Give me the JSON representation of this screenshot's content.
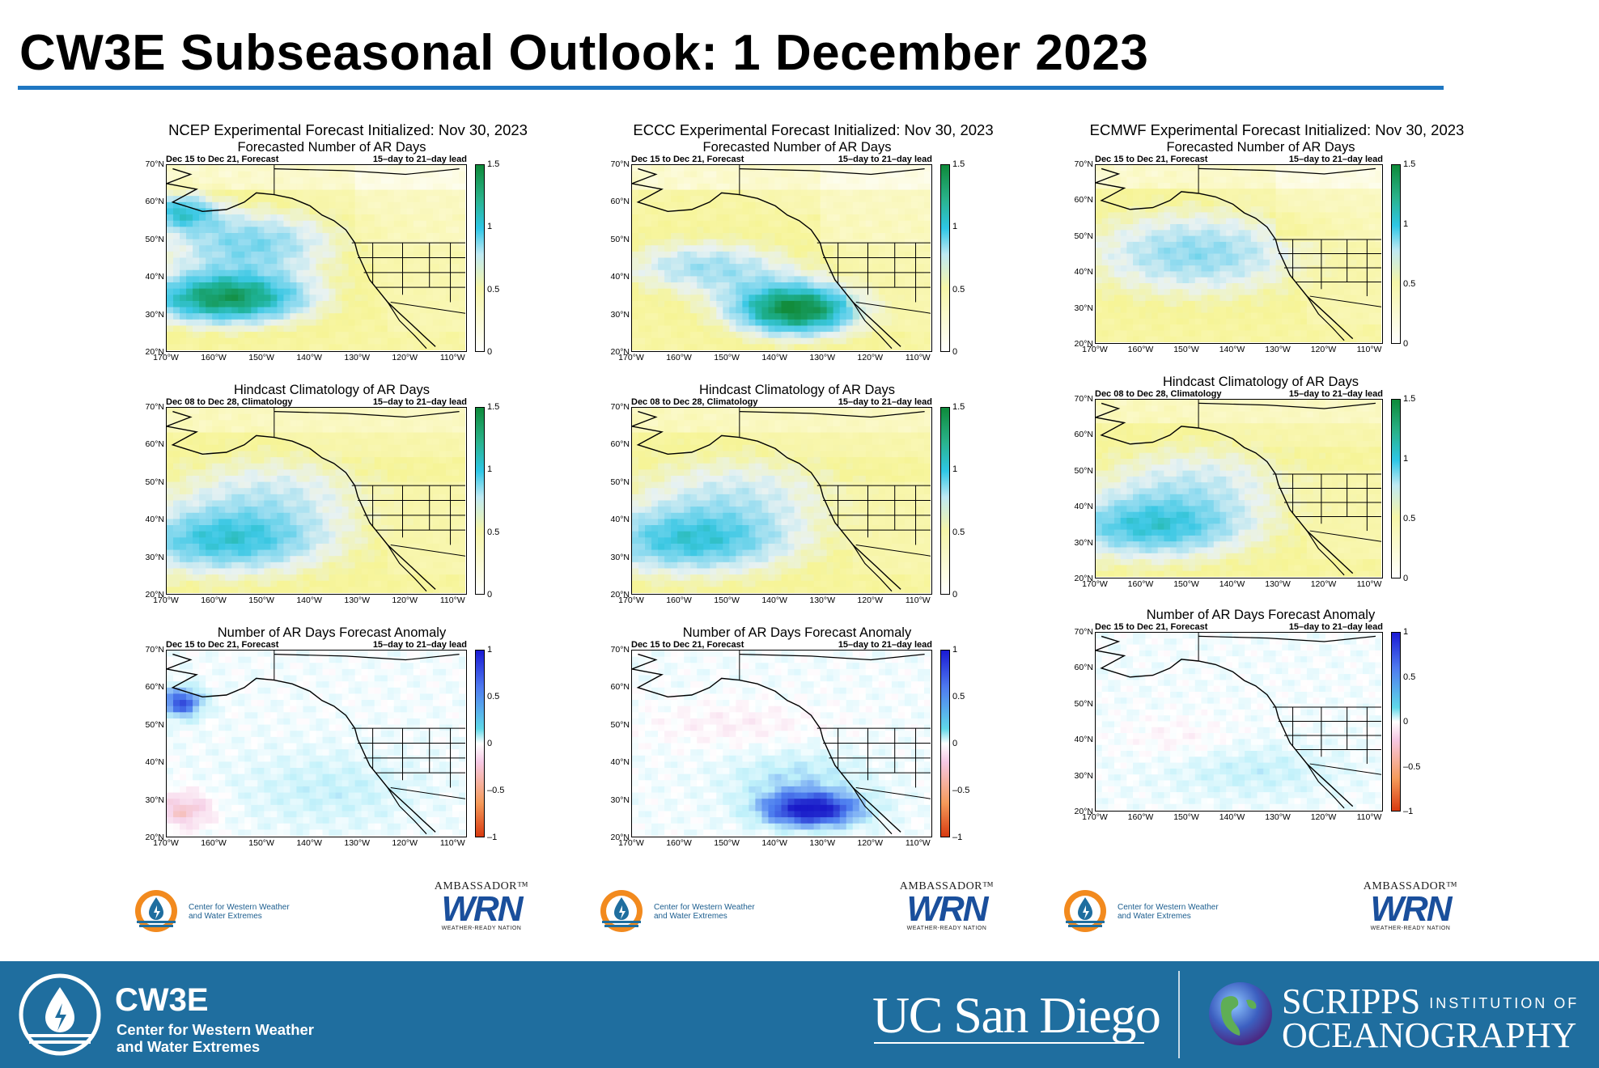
{
  "page": {
    "title": "CW3E Subseasonal Outlook: 1 December 2023"
  },
  "columns": [
    {
      "header": "NCEP Experimental Forecast Initialized: Nov 30, 2023",
      "panels": [
        {
          "title": "Forecasted Number of AR Days",
          "left": "Dec 15 to Dec 21, Forecast",
          "right": "15–day to 21–day lead",
          "kind": "days",
          "cbar": [
            "1.5",
            "1",
            "0.5",
            "0"
          ]
        },
        {
          "title": "Hindcast Climatology of AR Days",
          "left": "Dec 08 to Dec 28, Climatology",
          "right": "15–day to 21–day lead",
          "kind": "clim",
          "cbar": [
            "1.5",
            "1",
            "0.5",
            "0"
          ]
        },
        {
          "title": "Number of AR Days Forecast Anomaly",
          "left": "Dec 15 to Dec 21, Forecast",
          "right": "15–day to 21–day lead",
          "kind": "anom",
          "cbar": [
            "1",
            "0.5",
            "0",
            "–0.5",
            "–1"
          ]
        }
      ]
    },
    {
      "header": "ECCC Experimental Forecast Initialized: Nov 30, 2023",
      "panels": [
        {
          "title": "Forecasted Number of AR Days",
          "left": "Dec 15 to Dec 21, Forecast",
          "right": "15–day to 21–day lead",
          "kind": "days",
          "cbar": [
            "1.5",
            "1",
            "0.5",
            "0"
          ]
        },
        {
          "title": "Hindcast Climatology of AR Days",
          "left": "Dec 08 to Dec 28, Climatology",
          "right": "15–day to 21–day lead",
          "kind": "clim",
          "cbar": [
            "1.5",
            "1",
            "0.5",
            "0"
          ]
        },
        {
          "title": "Number of AR Days Forecast Anomaly",
          "left": "Dec 15 to Dec 21, Forecast",
          "right": "15–day to 21–day lead",
          "kind": "anom",
          "cbar": [
            "1",
            "0.5",
            "0",
            "–0.5",
            "–1"
          ]
        }
      ]
    },
    {
      "header": "ECMWF Experimental Forecast Initialized: Nov 30, 2023",
      "panels": [
        {
          "title": "Forecasted Number of AR Days",
          "left": "Dec 15 to Dec 21, Forecast",
          "right": "15–day to 21–day lead",
          "kind": "days",
          "cbar": [
            "1.5",
            "1",
            "0.5",
            "0"
          ]
        },
        {
          "title": "Hindcast Climatology of AR Days",
          "left": "Dec 08 to Dec 28, Climatology",
          "right": "15–day to 21–day lead",
          "kind": "clim",
          "cbar": [
            "1.5",
            "1",
            "0.5",
            "0"
          ]
        },
        {
          "title": "Number of AR Days Forecast Anomaly",
          "left": "Dec 15 to Dec 21, Forecast",
          "right": "15–day to 21–day lead",
          "kind": "anom",
          "cbar": [
            "1",
            "0.5",
            "0",
            "–0.5",
            "–1"
          ]
        }
      ]
    }
  ],
  "axes": {
    "lat": [
      "70°N",
      "60°N",
      "50°N",
      "40°N",
      "30°N",
      "20°N"
    ],
    "lon": [
      "170°W",
      "160°W",
      "150°W",
      "140°W",
      "130°W",
      "120°W",
      "110°W"
    ]
  },
  "logos": {
    "cw3e_small_line1": "Center for Western Weather",
    "cw3e_small_line2": "and Water Extremes",
    "wrn_top": "AMBASSADOR™",
    "wrn_main": "WRN",
    "wrn_sub": "WEATHER-READY NATION"
  },
  "footer": {
    "cw3e_title": "CW3E",
    "cw3e_line1": "Center for Western Weather",
    "cw3e_line2": "and Water Extremes",
    "ucsd": "UC San Diego",
    "scripps_line1": "SCRIPPS",
    "scripps_line1_small": "INSTITUTION OF",
    "scripps_line2": "OCEANOGRAPHY"
  },
  "colors": {
    "accent_rule": "#1f77c2",
    "footer_bg": "#1f6e9f"
  }
}
